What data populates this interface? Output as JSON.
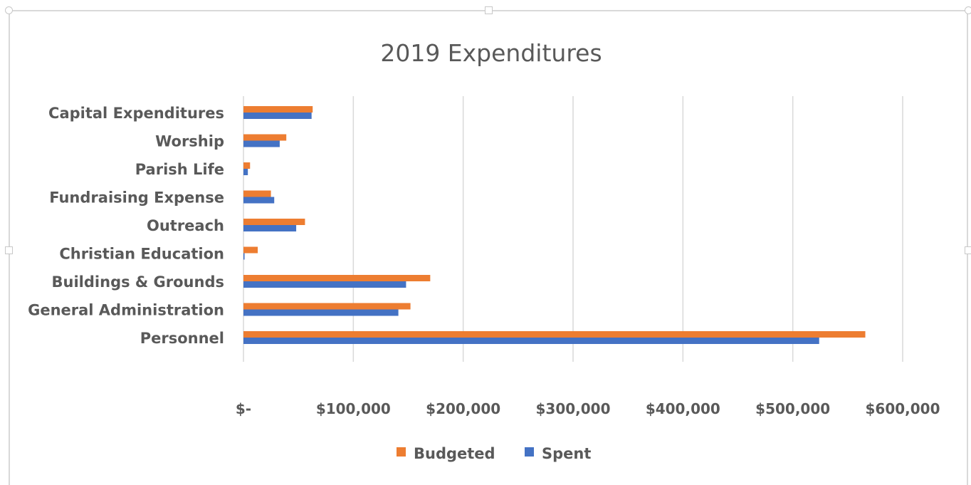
{
  "chart_data": {
    "type": "bar",
    "orientation": "horizontal",
    "title": "2019 Expenditures",
    "categories": [
      "Capital Expenditures",
      "Worship",
      "Parish Life",
      "Fundraising Expense",
      "Outreach",
      "Christian Education",
      "Buildings & Grounds",
      "General Administration",
      "Personnel"
    ],
    "series": [
      {
        "name": "Budgeted",
        "color": "#ed7d31",
        "values": [
          63000,
          39000,
          6000,
          25000,
          56000,
          13000,
          170000,
          152000,
          566000
        ]
      },
      {
        "name": "Spent",
        "color": "#4472c4",
        "values": [
          62000,
          33000,
          4000,
          28000,
          48000,
          1000,
          148000,
          141000,
          524000
        ]
      }
    ],
    "xlim": [
      0,
      600000
    ],
    "xticks": [
      0,
      100000,
      200000,
      300000,
      400000,
      500000,
      600000
    ],
    "xtick_labels": [
      "$-",
      "$100,000",
      "$200,000",
      "$300,000",
      "$400,000",
      "$500,000",
      "$600,000"
    ],
    "grid": true,
    "legend_position": "bottom",
    "gridline_color": "#d9d9d9",
    "text_color": "#595959"
  }
}
